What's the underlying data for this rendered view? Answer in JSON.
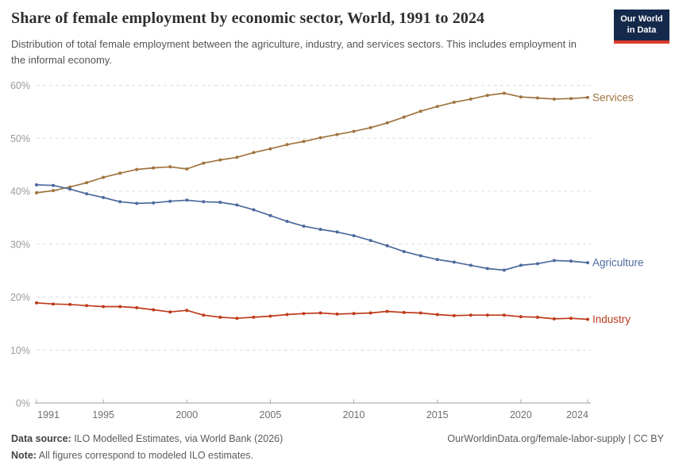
{
  "header": {
    "title": "Share of female employment by economic sector, World, 1991 to 2024",
    "subtitle": "Distribution of total female employment between the agriculture, industry, and services sectors. This includes employment in the informal economy.",
    "logo": {
      "line1": "Our World",
      "line2": "in Data",
      "bg_color": "#15294B",
      "accent_color": "#DE3A2E"
    }
  },
  "chart_data": {
    "type": "line",
    "title": "Share of female employment by economic sector, World, 1991 to 2024",
    "x": [
      1991,
      1992,
      1993,
      1994,
      1995,
      1996,
      1997,
      1998,
      1999,
      2000,
      2001,
      2002,
      2003,
      2004,
      2005,
      2006,
      2007,
      2008,
      2009,
      2010,
      2011,
      2012,
      2013,
      2014,
      2015,
      2016,
      2017,
      2018,
      2019,
      2020,
      2021,
      2022,
      2023,
      2024
    ],
    "series": [
      {
        "name": "Services",
        "color": "#A0743F",
        "values": [
          39.7,
          40.1,
          40.8,
          41.6,
          42.6,
          43.4,
          44.1,
          44.4,
          44.6,
          44.2,
          45.3,
          45.9,
          46.4,
          47.3,
          48.0,
          48.8,
          49.4,
          50.1,
          50.7,
          51.3,
          52.0,
          52.9,
          54.0,
          55.1,
          56.0,
          56.8,
          57.4,
          58.1,
          58.5,
          57.8,
          57.6,
          57.4,
          57.5,
          57.7
        ]
      },
      {
        "name": "Agriculture",
        "color": "#4C6A9C",
        "values": [
          41.2,
          41.1,
          40.4,
          39.5,
          38.8,
          38.0,
          37.7,
          37.8,
          38.1,
          38.3,
          38.0,
          37.9,
          37.4,
          36.5,
          35.4,
          34.3,
          33.4,
          32.8,
          32.3,
          31.6,
          30.7,
          29.7,
          28.6,
          27.8,
          27.1,
          26.6,
          26.0,
          25.4,
          25.1,
          26.0,
          26.3,
          26.9,
          26.8,
          26.5
        ]
      },
      {
        "name": "Industry",
        "color": "#BE3B1C",
        "values": [
          18.9,
          18.7,
          18.6,
          18.4,
          18.2,
          18.2,
          18.0,
          17.6,
          17.2,
          17.5,
          16.6,
          16.2,
          16.0,
          16.2,
          16.4,
          16.7,
          16.9,
          17.0,
          16.8,
          16.9,
          17.0,
          17.3,
          17.1,
          17.0,
          16.7,
          16.5,
          16.6,
          16.6,
          16.6,
          16.3,
          16.2,
          15.9,
          16.0,
          15.8
        ]
      }
    ],
    "ylim": [
      0,
      60
    ],
    "y_ticks": [
      {
        "value": 0,
        "label": "0%"
      },
      {
        "value": 10,
        "label": "10%"
      },
      {
        "value": 20,
        "label": "20%"
      },
      {
        "value": 30,
        "label": "30%"
      },
      {
        "value": 40,
        "label": "40%"
      },
      {
        "value": 50,
        "label": "50%"
      },
      {
        "value": 60,
        "label": "60%"
      }
    ],
    "x_ticks": [
      1991,
      1995,
      2000,
      2005,
      2010,
      2015,
      2020,
      2024
    ],
    "grid": "horizontal-dashed",
    "legend_position": "right-end-labels",
    "xlabel": "",
    "ylabel": ""
  },
  "footer": {
    "datasource_label": "Data source:",
    "datasource_text": " ILO Modelled Estimates, via World Bank (2026)",
    "credit": "OurWorldinData.org/female-labor-supply | CC BY",
    "note_label": "Note:",
    "note_text": " All figures correspond to modeled ILO estimates."
  }
}
